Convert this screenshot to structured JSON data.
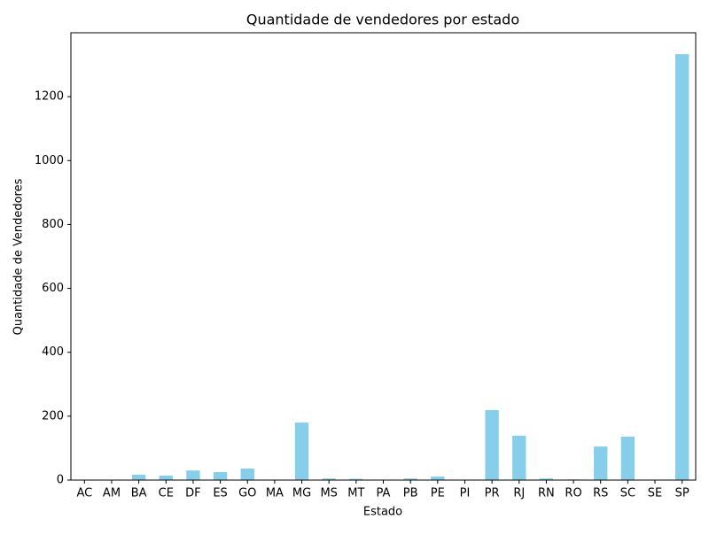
{
  "chart_data": {
    "type": "bar",
    "title": "Quantidade de vendedores por estado",
    "x_label": "Estado",
    "y_label": "Quantidade de Vendedores",
    "categories": [
      "AC",
      "AM",
      "BA",
      "CE",
      "DF",
      "ES",
      "GO",
      "MA",
      "MG",
      "MS",
      "MT",
      "PA",
      "PB",
      "PE",
      "PI",
      "PR",
      "RJ",
      "RN",
      "RO",
      "RS",
      "SC",
      "SE",
      "SP"
    ],
    "values": [
      1,
      1,
      17,
      14,
      30,
      25,
      36,
      1,
      180,
      5,
      4,
      1,
      5,
      11,
      1,
      219,
      139,
      5,
      2,
      105,
      136,
      1,
      1333
    ],
    "color": "#87ceeb",
    "ylim": [
      0,
      1400
    ],
    "yticks": [
      0,
      200,
      400,
      600,
      800,
      1000,
      1200
    ],
    "grid": false
  }
}
